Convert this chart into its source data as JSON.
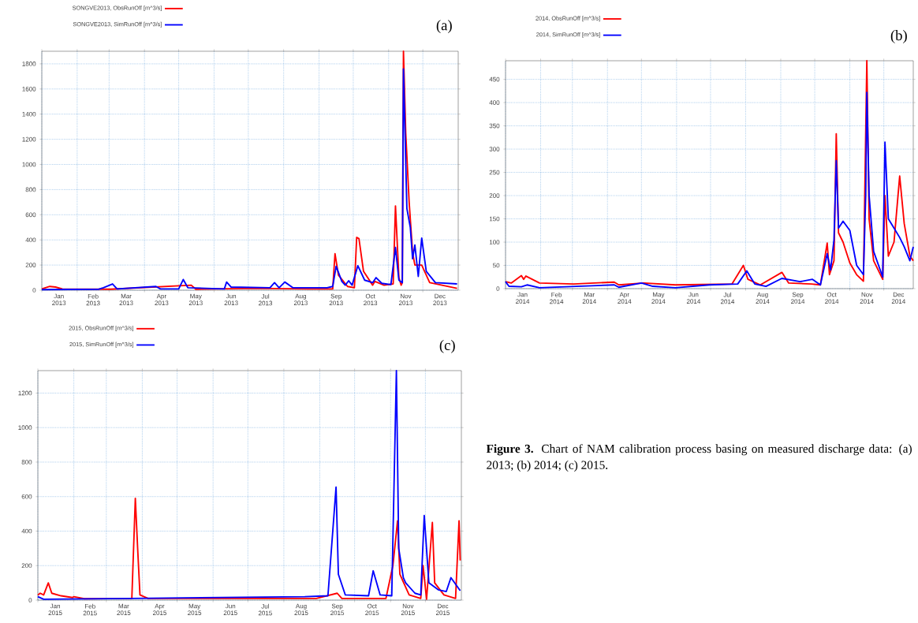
{
  "chart_data": [
    {
      "type": "line",
      "title": "(a)",
      "legend": "top left",
      "grid": true,
      "line_style": "solid",
      "xlim": [
        "2013-01-01",
        "2014-01-01"
      ],
      "ylim": [
        0,
        1900
      ],
      "yticks": [
        0,
        200,
        400,
        600,
        800,
        1000,
        1200,
        1400,
        1600,
        1800
      ],
      "xticks": [
        {
          "value": "2013-01-01",
          "label": null
        },
        {
          "value": "2013-02-01",
          "label": null
        },
        {
          "value": "2013-03-01",
          "label": null
        },
        {
          "value": "2013-04-01",
          "label": null
        },
        {
          "value": "2013-05-01",
          "label": null
        },
        {
          "value": "2013-06-01",
          "label": null
        },
        {
          "value": "2013-07-01",
          "label": null
        },
        {
          "value": "2013-08-01",
          "label": null
        },
        {
          "value": "2013-09-01",
          "label": null
        },
        {
          "value": "2013-10-01",
          "label": null
        },
        {
          "value": "2013-11-01",
          "label": null
        },
        {
          "value": "2013-12-01",
          "label": null
        },
        {
          "value": "2013-01-16",
          "label": "Jan 2013"
        },
        {
          "value": "2013-02-15",
          "label": "Feb 2013"
        },
        {
          "value": "2013-03-16",
          "label": "Mar 2013"
        },
        {
          "value": "2013-04-16",
          "label": "Apr 2013"
        },
        {
          "value": "2013-05-16",
          "label": "May 2013"
        },
        {
          "value": "2013-06-16",
          "label": "Jun 2013"
        },
        {
          "value": "2013-07-16",
          "label": "Jul 2013"
        },
        {
          "value": "2013-08-16",
          "label": "Aug 2013"
        },
        {
          "value": "2013-09-16",
          "label": "Sep 2013"
        },
        {
          "value": "2013-10-16",
          "label": "Oct 2013"
        },
        {
          "value": "2013-11-16",
          "label": "Nov 2013"
        },
        {
          "value": "2013-12-16",
          "label": "Dec 2013"
        }
      ],
      "series": [
        {
          "name": "SONGVE2013, ObsRunOff [m^3/s]",
          "color": "#ff0000",
          "x": [
            "2013-01-01",
            "2013-01-08",
            "2013-01-13",
            "2013-01-19",
            "2013-03-02",
            "2013-05-12",
            "2013-05-16",
            "2013-07-10",
            "2013-08-24",
            "2013-09-13",
            "2013-09-15",
            "2013-09-18",
            "2013-09-26",
            "2013-10-02",
            "2013-10-04",
            "2013-10-06",
            "2013-10-10",
            "2013-10-18",
            "2013-10-20",
            "2013-10-28",
            "2013-11-05",
            "2013-11-07",
            "2013-11-10",
            "2013-11-12",
            "2013-11-13",
            "2013-11-14",
            "2013-11-16",
            "2013-11-19",
            "2013-11-22",
            "2013-11-24",
            "2013-11-30",
            "2013-12-07",
            "2013-12-31"
          ],
          "values": [
            10,
            30,
            25,
            10,
            8,
            40,
            8,
            15,
            10,
            10,
            290,
            120,
            30,
            20,
            420,
            410,
            150,
            40,
            70,
            40,
            50,
            670,
            100,
            40,
            60,
            1900,
            1250,
            700,
            300,
            200,
            200,
            60,
            15
          ]
        },
        {
          "name": "SONGVE2013, SimRunOff [m^3/s]",
          "color": "#0000ff",
          "x": [
            "2013-01-01",
            "2013-02-20",
            "2013-02-24",
            "2013-03-04",
            "2013-03-08",
            "2013-04-11",
            "2013-04-15",
            "2013-05-01",
            "2013-05-05",
            "2013-05-09",
            "2013-06-10",
            "2013-06-12",
            "2013-06-16",
            "2013-07-20",
            "2013-07-24",
            "2013-07-28",
            "2013-08-02",
            "2013-08-09",
            "2013-09-08",
            "2013-09-13",
            "2013-09-16",
            "2013-09-21",
            "2013-09-24",
            "2013-09-27",
            "2013-09-30",
            "2013-10-05",
            "2013-10-11",
            "2013-10-18",
            "2013-10-21",
            "2013-10-26",
            "2013-11-03",
            "2013-11-07",
            "2013-11-10",
            "2013-11-13",
            "2013-11-14",
            "2013-11-17",
            "2013-11-20",
            "2013-11-22",
            "2013-11-24",
            "2013-11-27",
            "2013-11-30",
            "2013-12-04",
            "2013-12-12",
            "2013-12-31"
          ],
          "values": [
            5,
            8,
            20,
            50,
            10,
            30,
            10,
            10,
            85,
            20,
            10,
            65,
            25,
            20,
            60,
            20,
            65,
            20,
            20,
            30,
            190,
            70,
            40,
            75,
            40,
            195,
            80,
            60,
            100,
            55,
            45,
            340,
            80,
            60,
            1760,
            650,
            500,
            250,
            360,
            110,
            415,
            150,
            60,
            50
          ]
        }
      ]
    },
    {
      "type": "line",
      "title": "(b)",
      "legend": "top left",
      "grid": true,
      "line_style": "solid",
      "xlim": [
        "2014-01-01",
        "2014-12-27"
      ],
      "ylim": [
        0,
        490
      ],
      "yticks": [
        0,
        50,
        100,
        150,
        200,
        250,
        300,
        350,
        400,
        450
      ],
      "xticks": [
        {
          "value": "2014-01-01",
          "label": null
        },
        {
          "value": "2014-02-01",
          "label": null
        },
        {
          "value": "2014-03-01",
          "label": null
        },
        {
          "value": "2014-04-01",
          "label": null
        },
        {
          "value": "2014-05-01",
          "label": null
        },
        {
          "value": "2014-06-01",
          "label": null
        },
        {
          "value": "2014-07-01",
          "label": null
        },
        {
          "value": "2014-08-01",
          "label": null
        },
        {
          "value": "2014-09-01",
          "label": null
        },
        {
          "value": "2014-10-01",
          "label": null
        },
        {
          "value": "2014-11-01",
          "label": null
        },
        {
          "value": "2014-12-01",
          "label": null
        },
        {
          "value": "2014-01-16",
          "label": "Jan 2014"
        },
        {
          "value": "2014-02-15",
          "label": "Feb 2014"
        },
        {
          "value": "2014-03-16",
          "label": "Mar 2014"
        },
        {
          "value": "2014-04-16",
          "label": "Apr 2014"
        },
        {
          "value": "2014-05-16",
          "label": "May 2014"
        },
        {
          "value": "2014-06-16",
          "label": "Jun 2014"
        },
        {
          "value": "2014-07-16",
          "label": "Jul 2014"
        },
        {
          "value": "2014-08-16",
          "label": "Aug 2014"
        },
        {
          "value": "2014-09-16",
          "label": "Sep 2014"
        },
        {
          "value": "2014-10-16",
          "label": "Oct 2014"
        },
        {
          "value": "2014-11-16",
          "label": "Nov 2014"
        },
        {
          "value": "2014-12-14",
          "label": "Dec 2014"
        }
      ],
      "series": [
        {
          "name": "2014, ObsRunOff [m^3/s]",
          "color": "#ff0000",
          "x": [
            "2014-01-01",
            "2014-01-06",
            "2014-01-15",
            "2014-01-17",
            "2014-01-19",
            "2014-01-31",
            "2014-03-02",
            "2014-04-07",
            "2014-04-11",
            "2014-05-03",
            "2014-05-31",
            "2014-07-20",
            "2014-07-30",
            "2014-08-03",
            "2014-08-14",
            "2014-09-02",
            "2014-09-08",
            "2014-09-28",
            "2014-10-06",
            "2014-10-12",
            "2014-10-14",
            "2014-10-18",
            "2014-10-20",
            "2014-10-22",
            "2014-10-26",
            "2014-11-01",
            "2014-11-07",
            "2014-11-13",
            "2014-11-16",
            "2014-11-18",
            "2014-11-22",
            "2014-11-30",
            "2014-12-02",
            "2014-12-05",
            "2014-12-10",
            "2014-12-15",
            "2014-12-19",
            "2014-12-24",
            "2014-12-27"
          ],
          "values": [
            15,
            12,
            28,
            20,
            27,
            12,
            10,
            14,
            8,
            12,
            8,
            10,
            50,
            20,
            8,
            35,
            12,
            10,
            8,
            98,
            30,
            60,
            333,
            120,
            100,
            55,
            30,
            16,
            490,
            150,
            60,
            20,
            200,
            70,
            100,
            242,
            140,
            70,
            60
          ]
        },
        {
          "name": "2014, SimRunOff [m^3/s]",
          "color": "#0000ff",
          "x": [
            "2014-01-01",
            "2014-01-04",
            "2014-01-15",
            "2014-01-20",
            "2014-01-31",
            "2014-04-07",
            "2014-04-11",
            "2014-05-01",
            "2014-05-11",
            "2014-05-31",
            "2014-06-30",
            "2014-07-25",
            "2014-08-02",
            "2014-08-09",
            "2014-08-19",
            "2014-09-02",
            "2014-09-18",
            "2014-09-29",
            "2014-10-06",
            "2014-10-12",
            "2014-10-15",
            "2014-10-18",
            "2014-10-20",
            "2014-10-22",
            "2014-10-26",
            "2014-11-01",
            "2014-11-07",
            "2014-11-13",
            "2014-11-15",
            "2014-11-16",
            "2014-11-18",
            "2014-11-22",
            "2014-11-30",
            "2014-12-02",
            "2014-12-05",
            "2014-12-10",
            "2014-12-15",
            "2014-12-19",
            "2014-12-24",
            "2014-12-27"
          ],
          "values": [
            15,
            5,
            4,
            8,
            2,
            8,
            3,
            12,
            5,
            2,
            8,
            10,
            38,
            10,
            5,
            22,
            15,
            20,
            8,
            75,
            40,
            105,
            275,
            130,
            145,
            125,
            50,
            30,
            200,
            422,
            200,
            80,
            25,
            315,
            150,
            130,
            110,
            90,
            60,
            90
          ]
        }
      ]
    },
    {
      "type": "line",
      "title": "(c)",
      "legend": "top left",
      "grid": true,
      "line_style": "solid",
      "xlim": [
        "2015-01-01",
        "2016-01-01"
      ],
      "ylim": [
        0,
        1330
      ],
      "yticks": [
        0,
        200,
        400,
        600,
        800,
        1000,
        1200
      ],
      "xticks": [
        {
          "value": "2015-01-01",
          "label": null
        },
        {
          "value": "2015-02-01",
          "label": null
        },
        {
          "value": "2015-03-01",
          "label": null
        },
        {
          "value": "2015-04-01",
          "label": null
        },
        {
          "value": "2015-05-01",
          "label": null
        },
        {
          "value": "2015-06-01",
          "label": null
        },
        {
          "value": "2015-07-01",
          "label": null
        },
        {
          "value": "2015-08-01",
          "label": null
        },
        {
          "value": "2015-09-01",
          "label": null
        },
        {
          "value": "2015-10-01",
          "label": null
        },
        {
          "value": "2015-11-01",
          "label": null
        },
        {
          "value": "2015-12-01",
          "label": null
        },
        {
          "value": "2015-01-16",
          "label": "Jan 2015"
        },
        {
          "value": "2015-02-15",
          "label": "Feb 2015"
        },
        {
          "value": "2015-03-16",
          "label": "Mar 2015"
        },
        {
          "value": "2015-04-16",
          "label": "Apr 2015"
        },
        {
          "value": "2015-05-16",
          "label": "May 2015"
        },
        {
          "value": "2015-06-16",
          "label": "Jun 2015"
        },
        {
          "value": "2015-07-16",
          "label": "Jul 2015"
        },
        {
          "value": "2015-08-16",
          "label": "Aug 2015"
        },
        {
          "value": "2015-09-16",
          "label": "Sep 2015"
        },
        {
          "value": "2015-10-16",
          "label": "Oct 2015"
        },
        {
          "value": "2015-11-16",
          "label": "Nov 2015"
        },
        {
          "value": "2015-12-16",
          "label": "Dec 2015"
        }
      ],
      "annotations": [
        "**Figure 3.** Chart of NAM calibration process basing on measured discharge data: (a) 2013; (b) 2014; (c) 2015."
      ],
      "series": [
        {
          "name": "2015, ObsRunOff [m^3/s]",
          "color": "#ff0000",
          "x": [
            "2015-01-01",
            "2015-01-03",
            "2015-01-06",
            "2015-01-10",
            "2015-01-13",
            "2015-01-21",
            "2015-01-31",
            "2015-02-01",
            "2015-02-10",
            "2015-03-23",
            "2015-03-26",
            "2015-03-28",
            "2015-03-30",
            "2015-04-06",
            "2015-08-29",
            "2015-09-16",
            "2015-09-20",
            "2015-10-28",
            "2015-11-03",
            "2015-11-07",
            "2015-11-09",
            "2015-11-17",
            "2015-11-27",
            "2015-11-29",
            "2015-12-02",
            "2015-12-07",
            "2015-12-09",
            "2015-12-17",
            "2015-12-27",
            "2015-12-30",
            "2015-12-31"
          ],
          "values": [
            30,
            40,
            30,
            100,
            40,
            25,
            15,
            20,
            8,
            10,
            590,
            300,
            30,
            10,
            10,
            40,
            10,
            10,
            200,
            460,
            150,
            30,
            10,
            200,
            5,
            450,
            100,
            30,
            10,
            460,
            230
          ]
        },
        {
          "name": "2015, SimRunOff [m^3/s]",
          "color": "#0000ff",
          "x": [
            "2015-01-01",
            "2015-01-06",
            "2015-03-22",
            "2015-08-19",
            "2015-09-08",
            "2015-09-15",
            "2015-09-17",
            "2015-09-23",
            "2015-10-13",
            "2015-10-17",
            "2015-10-23",
            "2015-11-02",
            "2015-11-06",
            "2015-11-08",
            "2015-11-12",
            "2015-11-14",
            "2015-11-22",
            "2015-11-27",
            "2015-11-30",
            "2015-12-04",
            "2015-12-12",
            "2015-12-19",
            "2015-12-23",
            "2015-12-31"
          ],
          "values": [
            20,
            5,
            10,
            20,
            25,
            655,
            150,
            30,
            25,
            170,
            30,
            25,
            1330,
            300,
            130,
            100,
            40,
            30,
            490,
            100,
            60,
            50,
            130,
            55
          ]
        }
      ]
    }
  ]
}
